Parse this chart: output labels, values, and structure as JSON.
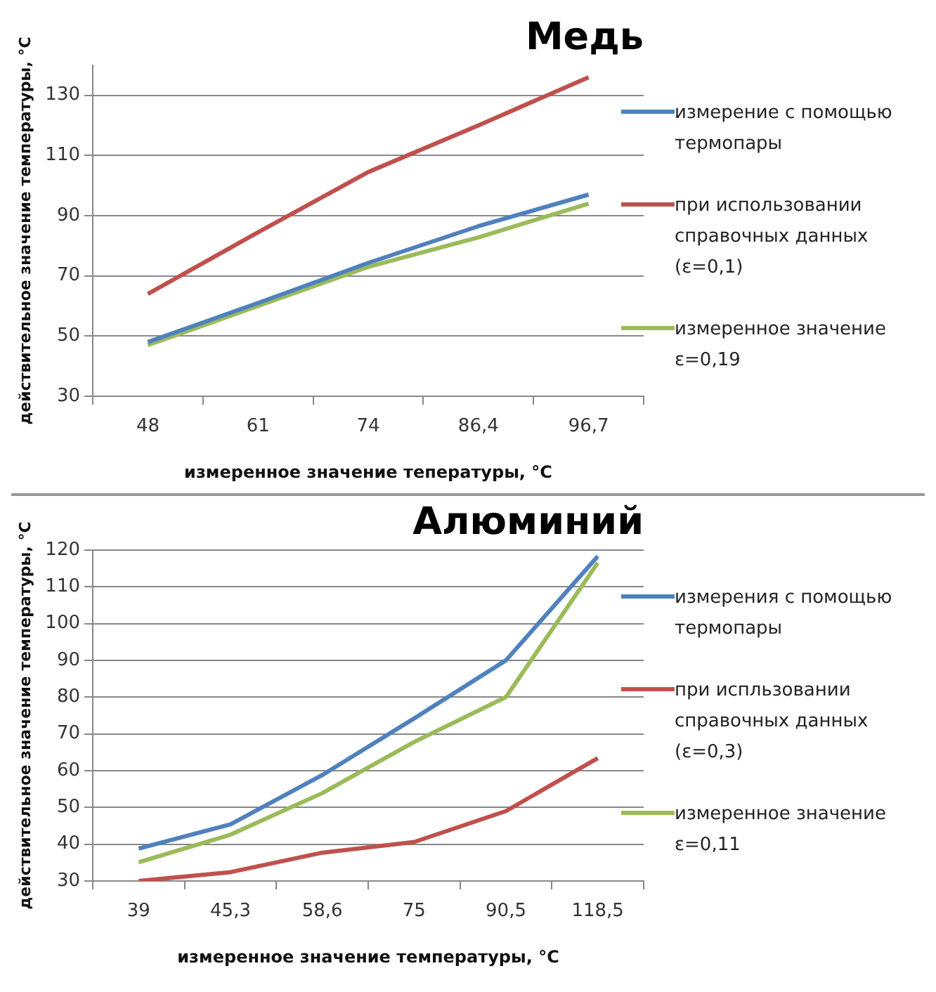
{
  "chart_data": [
    {
      "type": "line",
      "title": "Медь",
      "xlabel": "измеренное значение тепературы, °C",
      "ylabel": "действительное значение температуры, °C",
      "categories": [
        "48",
        "61",
        "74",
        "86,4",
        "96,7"
      ],
      "ylim": [
        30,
        140
      ],
      "yticks": [
        30,
        50,
        70,
        90,
        110,
        130
      ],
      "grid": "y",
      "legend": "right",
      "series": [
        {
          "name": "измерение  с помощью термопары",
          "color": "#4f81bd",
          "values": [
            48,
            61,
            74.3,
            86.5,
            97
          ]
        },
        {
          "name": "при использовании справочных данных (ε=0,1)",
          "color": "#c0504d",
          "values": [
            64,
            84.5,
            104.5,
            120,
            136
          ]
        },
        {
          "name": "измеренное значение ε=0,19",
          "color": "#9bbb59",
          "values": [
            47,
            60,
            73,
            82.8,
            94
          ]
        }
      ]
    },
    {
      "type": "line",
      "title": "Алюминий",
      "xlabel": "измеренное значение температуры, °C",
      "ylabel": "действительное значение температуры, °C",
      "categories": [
        "39",
        "45,3",
        "58,6",
        "75",
        "90,5",
        "118,5"
      ],
      "ylim": [
        30,
        120
      ],
      "yticks": [
        30,
        40,
        50,
        60,
        70,
        80,
        90,
        100,
        110,
        120
      ],
      "grid": "y",
      "legend": "right",
      "series": [
        {
          "name": "измерения  с помощью термопары",
          "color": "#4f81bd",
          "values": [
            38.8,
            45.4,
            58.8,
            74.2,
            90,
            118.3
          ]
        },
        {
          "name": "при испльзовании справочных данных (ε=0,3)",
          "color": "#c0504d",
          "values": [
            30,
            32.4,
            37.7,
            40.6,
            49,
            63.4
          ]
        },
        {
          "name": "измеренное значение ε=0,11",
          "color": "#9bbb59",
          "values": [
            35.1,
            42.6,
            53.9,
            67.8,
            80,
            116.5
          ]
        }
      ]
    }
  ]
}
